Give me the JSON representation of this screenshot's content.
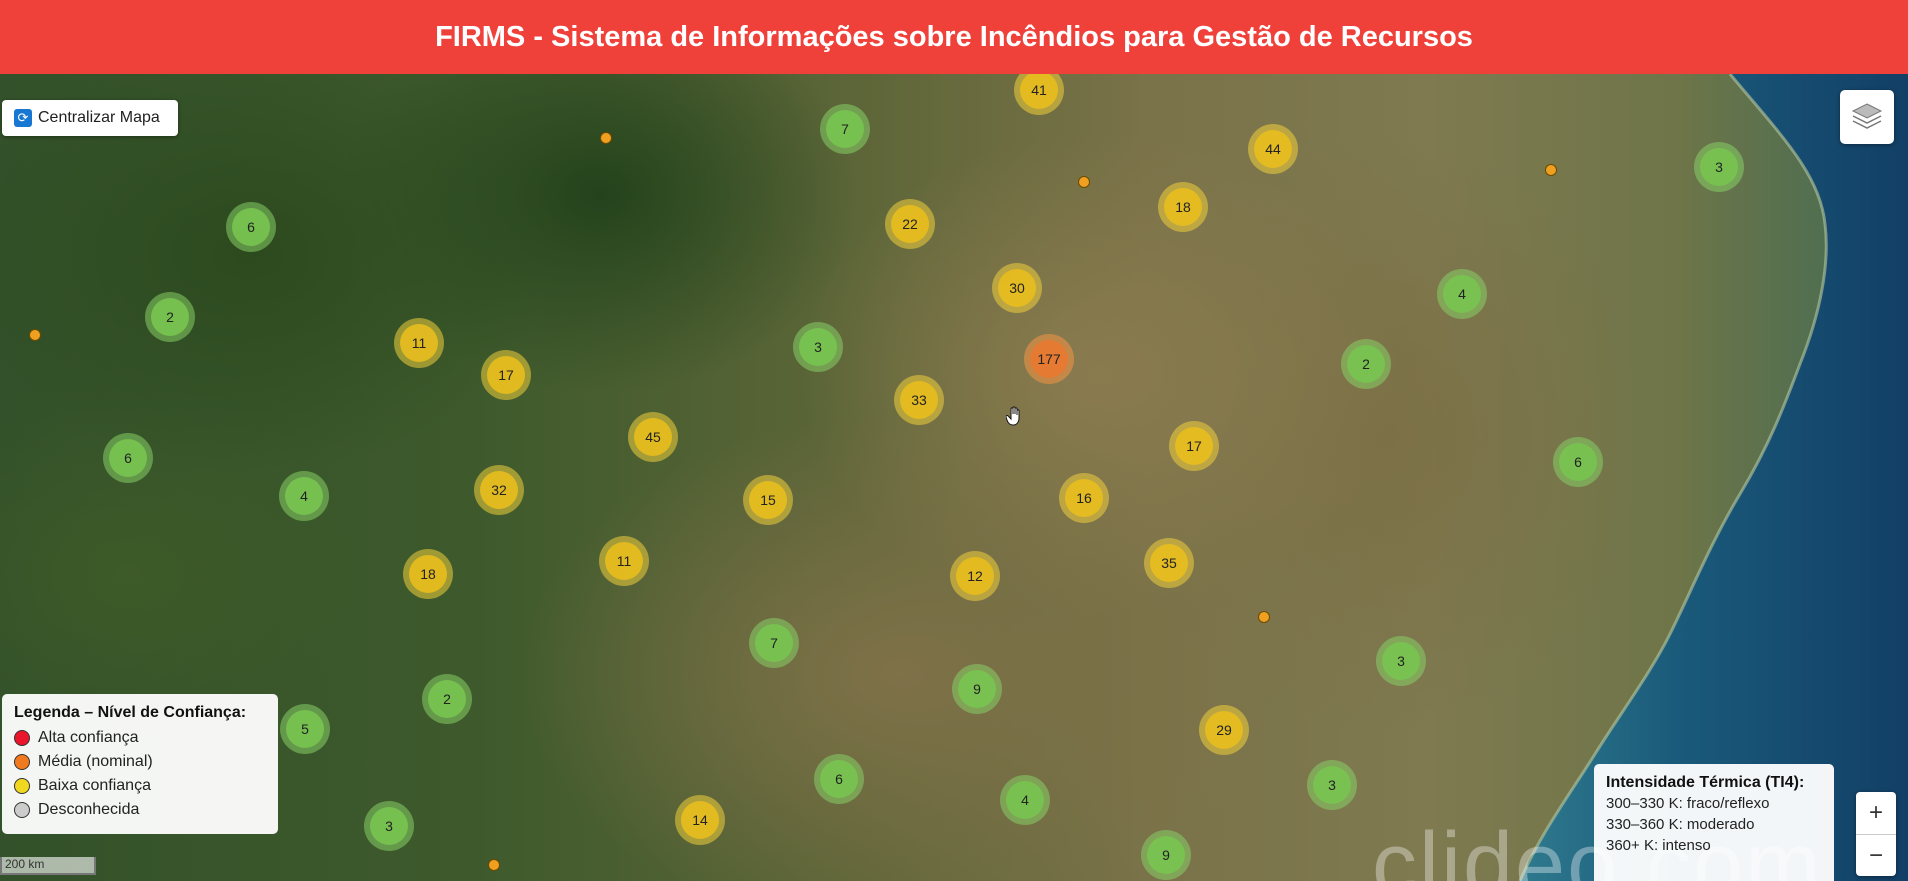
{
  "header": {
    "title": "FIRMS - Sistema de Informações sobre Incêndios para Gestão de Recursos",
    "bg": "#f0403a"
  },
  "map_controls": {
    "center_label": "Centralizar Mapa",
    "zoom_in": "+",
    "zoom_out": "−",
    "scale_label": "200 km",
    "layers_icon": "layers-icon"
  },
  "legend": {
    "title": "Legenda – Nível de Confiança:",
    "items": [
      {
        "label": "Alta confiança",
        "color": "#e8152b"
      },
      {
        "label": "Média (nominal)",
        "color": "#f07a20"
      },
      {
        "label": "Baixa confiança",
        "color": "#f0d820"
      },
      {
        "label": "Desconhecida",
        "color": "#cccccc"
      }
    ]
  },
  "thermal_legend": {
    "title": "Intensidade Térmica (TI4):",
    "rows": [
      "300–330 K: fraco/reflexo",
      "330–360 K: moderado",
      "360+ K: intenso"
    ]
  },
  "watermark": "clideo.com",
  "clusters": [
    {
      "count": "41",
      "level": "yellow"
    },
    {
      "count": "7",
      "level": "green"
    },
    {
      "count": "44",
      "level": "yellow"
    },
    {
      "count": "3",
      "level": "green"
    },
    {
      "count": "6",
      "level": "green"
    },
    {
      "count": "22",
      "level": "yellow"
    },
    {
      "count": "18",
      "level": "yellow"
    },
    {
      "count": "30",
      "level": "yellow"
    },
    {
      "count": "4",
      "level": "green"
    },
    {
      "count": "2",
      "level": "green"
    },
    {
      "count": "11",
      "level": "yellow"
    },
    {
      "count": "17",
      "level": "yellow"
    },
    {
      "count": "3",
      "level": "green"
    },
    {
      "count": "177",
      "level": "orange"
    },
    {
      "count": "2",
      "level": "green"
    },
    {
      "count": "33",
      "level": "yellow"
    },
    {
      "count": "45",
      "level": "yellow"
    },
    {
      "count": "6",
      "level": "green"
    },
    {
      "count": "17",
      "level": "yellow"
    },
    {
      "count": "6",
      "level": "green"
    },
    {
      "count": "4",
      "level": "green"
    },
    {
      "count": "32",
      "level": "yellow"
    },
    {
      "count": "15",
      "level": "yellow"
    },
    {
      "count": "16",
      "level": "yellow"
    },
    {
      "count": "18",
      "level": "yellow"
    },
    {
      "count": "11",
      "level": "yellow"
    },
    {
      "count": "12",
      "level": "yellow"
    },
    {
      "count": "35",
      "level": "yellow"
    },
    {
      "count": "7",
      "level": "green"
    },
    {
      "count": "3",
      "level": "green"
    },
    {
      "count": "2",
      "level": "green"
    },
    {
      "count": "9",
      "level": "green"
    },
    {
      "count": "5",
      "level": "green"
    },
    {
      "count": "29",
      "level": "yellow"
    },
    {
      "count": "6",
      "level": "green"
    },
    {
      "count": "3",
      "level": "green"
    },
    {
      "count": "4",
      "level": "green"
    },
    {
      "count": "14",
      "level": "yellow"
    },
    {
      "count": "3",
      "level": "green"
    },
    {
      "count": "9",
      "level": "green"
    }
  ]
}
